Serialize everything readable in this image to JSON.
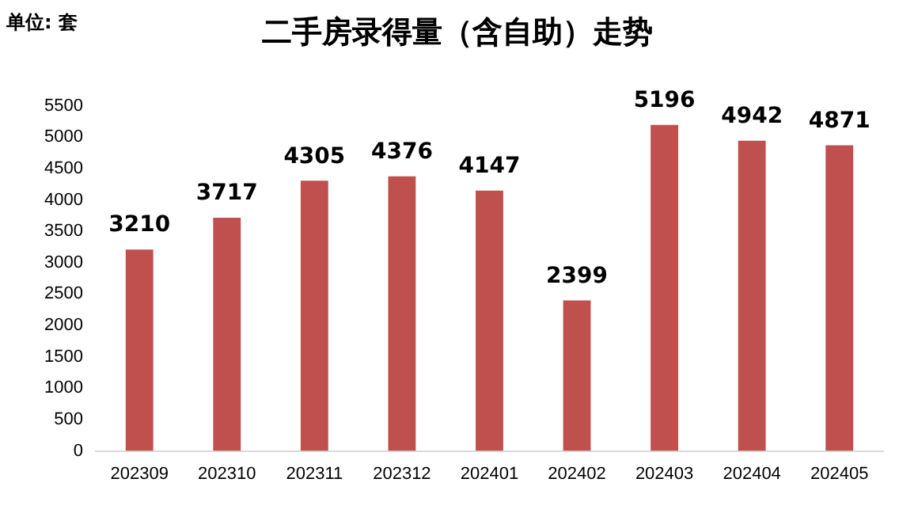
{
  "chart_data": {
    "type": "bar",
    "title": "二手房录得量（含自助）走势",
    "annotations": [
      "单位: 套"
    ],
    "categories": [
      "202309",
      "202310",
      "202311",
      "202312",
      "202401",
      "202402",
      "202403",
      "202404",
      "202405"
    ],
    "values": [
      3210,
      3717,
      4305,
      4376,
      4147,
      2399,
      5196,
      4942,
      4871
    ],
    "color": "#c0504d",
    "ylim": [
      0,
      5500
    ],
    "yticks": [
      0,
      500,
      1000,
      1500,
      2000,
      2500,
      3000,
      3500,
      4000,
      4500,
      5000,
      5500
    ],
    "data_labels": true
  }
}
